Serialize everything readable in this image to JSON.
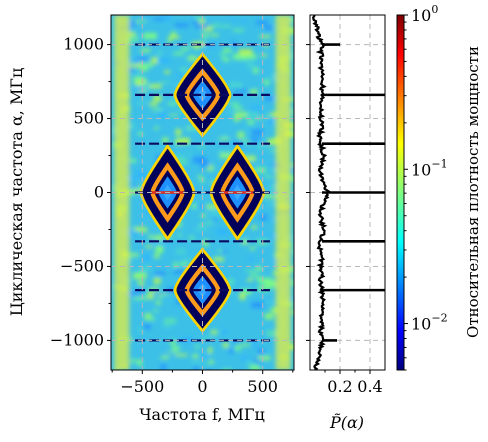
{
  "chart_data": [
    {
      "type": "heatmap",
      "title": "",
      "xlabel": "Частота f, МГц",
      "ylabel": "Циклическая частота α, МГц",
      "xlim": [
        -760,
        760
      ],
      "ylim": [
        -1200,
        1200
      ],
      "x_ticks": [
        -500,
        0,
        500
      ],
      "x_tick_labels": [
        "−500",
        "0",
        "500"
      ],
      "y_ticks": [
        -1000,
        -500,
        0,
        500,
        1000
      ],
      "y_tick_labels": [
        "−1000",
        "−500",
        "0",
        "500",
        "1000"
      ],
      "grid": true,
      "colormap": "jet",
      "lobes": [
        {
          "f": 0,
          "alpha": 660,
          "half_width_f": 240,
          "half_height_alpha": 290
        },
        {
          "f": 0,
          "alpha": -660,
          "half_width_f": 240,
          "half_height_alpha": 290
        },
        {
          "f": -290,
          "alpha": 0,
          "half_width_f": 230,
          "half_height_alpha": 330
        },
        {
          "f": 290,
          "alpha": 0,
          "half_width_f": 230,
          "half_height_alpha": 330
        }
      ],
      "peak_lines_alpha": [
        1000,
        660,
        330,
        0,
        -330,
        -660,
        -1000
      ]
    },
    {
      "type": "line",
      "xlabel": "P̃(α)",
      "xlim": [
        0,
        0.5
      ],
      "ylim": [
        -1200,
        1200
      ],
      "x_ticks": [
        0.2,
        0.4
      ],
      "x_tick_labels": [
        "0.2",
        "0.4"
      ],
      "grid": true,
      "baseline": 0.08,
      "baseline_profile": [
        [
          -1200,
          0.03
        ],
        [
          -1150,
          0.05
        ],
        [
          -1100,
          0.06
        ],
        [
          -1050,
          0.07
        ],
        [
          -1000,
          0.09
        ],
        [
          -950,
          0.07
        ],
        [
          -900,
          0.08
        ],
        [
          -850,
          0.07
        ],
        [
          -800,
          0.08
        ],
        [
          -750,
          0.09
        ],
        [
          -700,
          0.08
        ],
        [
          -650,
          0.08
        ],
        [
          -600,
          0.07
        ],
        [
          -550,
          0.08
        ],
        [
          -500,
          0.07
        ],
        [
          -450,
          0.08
        ],
        [
          -400,
          0.07
        ],
        [
          -350,
          0.06
        ],
        [
          -300,
          0.08
        ],
        [
          -250,
          0.09
        ],
        [
          -200,
          0.08
        ],
        [
          -150,
          0.07
        ],
        [
          -100,
          0.08
        ],
        [
          -50,
          0.1
        ],
        [
          0,
          0.12
        ],
        [
          50,
          0.09
        ],
        [
          100,
          0.08
        ],
        [
          150,
          0.07
        ],
        [
          200,
          0.08
        ],
        [
          250,
          0.09
        ],
        [
          300,
          0.08
        ],
        [
          350,
          0.06
        ],
        [
          400,
          0.07
        ],
        [
          450,
          0.08
        ],
        [
          500,
          0.07
        ],
        [
          550,
          0.08
        ],
        [
          600,
          0.07
        ],
        [
          650,
          0.08
        ],
        [
          700,
          0.08
        ],
        [
          750,
          0.09
        ],
        [
          800,
          0.08
        ],
        [
          850,
          0.07
        ],
        [
          900,
          0.08
        ],
        [
          950,
          0.07
        ],
        [
          1000,
          0.09
        ],
        [
          1050,
          0.06
        ],
        [
          1100,
          0.05
        ],
        [
          1150,
          0.04
        ],
        [
          1200,
          0.03
        ]
      ],
      "peaks": [
        {
          "alpha": 1000,
          "value": 0.2
        },
        {
          "alpha": 660,
          "value": 0.5
        },
        {
          "alpha": 330,
          "value": 0.5
        },
        {
          "alpha": 0,
          "value": 0.5
        },
        {
          "alpha": -330,
          "value": 0.5
        },
        {
          "alpha": -660,
          "value": 0.5
        },
        {
          "alpha": -1000,
          "value": 0.18
        }
      ]
    },
    {
      "type": "colorbar",
      "label": "Относительная плотность мощности",
      "scale": "log",
      "range": [
        0.005,
        1
      ],
      "ticks": [
        {
          "value": 1,
          "mantissa": "10",
          "exp": "0"
        },
        {
          "value": 0.1,
          "mantissa": "10",
          "exp": "−1"
        },
        {
          "value": 0.01,
          "mantissa": "10",
          "exp": "−2"
        }
      ]
    }
  ]
}
